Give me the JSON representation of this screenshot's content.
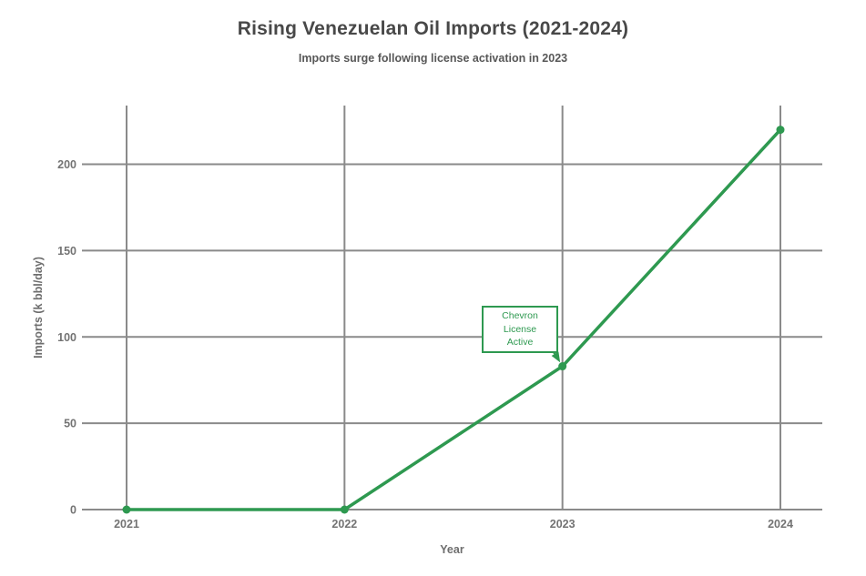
{
  "colors": {
    "background": "#ffffff",
    "line": "#2e9950",
    "grid": "#8a8a8a",
    "tick": "#737373",
    "title": "#484848",
    "subtitle": "#585858",
    "axis_label": "#6e6e6e",
    "annotation_bg": "#ffffff"
  },
  "chart_data": {
    "type": "line",
    "title": "Rising Venezuelan Oil Imports (2021-2024)",
    "subtitle": "Imports surge following license activation in 2023",
    "xlabel": "Year",
    "ylabel": "Imports (k bbl/day)",
    "categories": [
      "2021",
      "2022",
      "2023",
      "2024"
    ],
    "series": [
      {
        "name": "Venezuelan oil imports (k bbl/day)",
        "values": [
          0,
          0,
          83,
          220
        ]
      }
    ],
    "yticks": [
      0,
      50,
      100,
      150,
      200
    ],
    "ylim": [
      0,
      234
    ],
    "grid": true,
    "legend": false,
    "marker": "circle",
    "annotation": {
      "text_line1": "Chevron License",
      "text_line2": "Active",
      "target_category": "2023",
      "target_value": 83
    }
  }
}
